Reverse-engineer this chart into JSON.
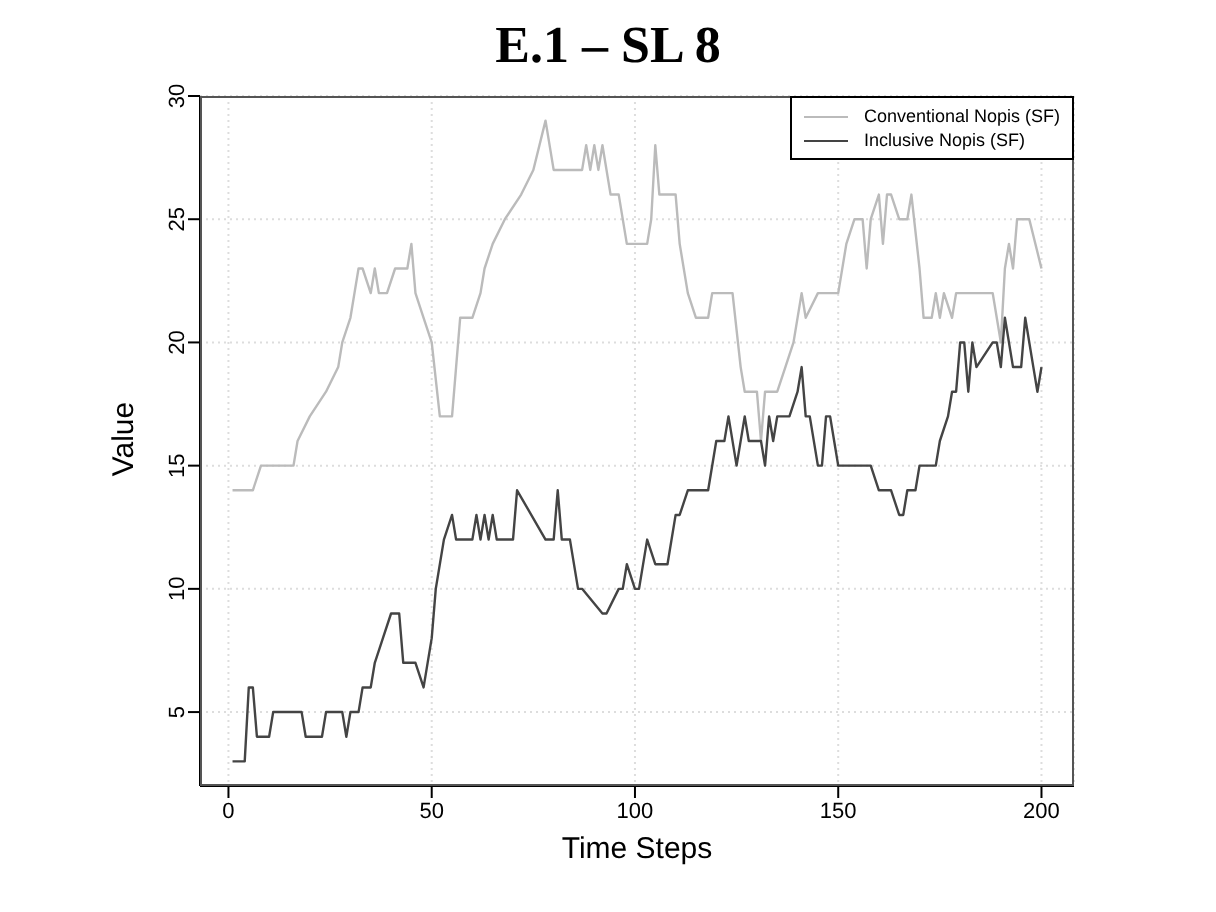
{
  "chart_data": {
    "type": "line",
    "title": "E.1 – SL 8",
    "xlabel": "Time Steps",
    "ylabel": "Value",
    "xlim": [
      -7,
      208
    ],
    "ylim": [
      2,
      30
    ],
    "xticks": [
      0,
      50,
      100,
      150,
      200
    ],
    "yticks": [
      5,
      10,
      15,
      20,
      25,
      30
    ],
    "grid": true,
    "legend": "top right",
    "line_style": "solid",
    "marker": "none",
    "series": [
      {
        "name": "Conventional Nopis (SF)",
        "color": "#bbbbbb",
        "x": [
          1,
          6,
          8,
          16,
          17,
          20,
          24,
          27,
          28,
          30,
          31,
          32,
          33,
          35,
          36,
          37,
          39,
          41,
          44,
          45,
          46,
          48,
          50,
          52,
          55,
          56,
          57,
          60,
          62,
          63,
          65,
          68,
          72,
          75,
          78,
          80,
          87,
          88,
          89,
          90,
          91,
          92,
          94,
          96,
          98,
          103,
          104,
          105,
          106,
          110,
          111,
          113,
          115,
          118,
          119,
          124,
          126,
          127,
          130,
          131,
          132,
          135,
          137,
          139,
          141,
          142,
          145,
          146,
          147,
          150,
          152,
          154,
          156,
          157,
          158,
          160,
          161,
          162,
          163,
          165,
          167,
          168,
          170,
          171,
          173,
          174,
          175,
          176,
          178,
          179,
          181,
          188,
          189,
          190,
          191,
          192,
          193,
          194,
          195,
          197,
          200
        ],
        "values": [
          14,
          14,
          15,
          15,
          16,
          17,
          18,
          19,
          20,
          21,
          22,
          23,
          23,
          22,
          23,
          22,
          22,
          23,
          23,
          24,
          22,
          21,
          20,
          17,
          17,
          19,
          21,
          21,
          22,
          23,
          24,
          25,
          26,
          27,
          29,
          27,
          27,
          28,
          27,
          28,
          27,
          28,
          26,
          26,
          24,
          24,
          25,
          28,
          26,
          26,
          24,
          22,
          21,
          21,
          22,
          22,
          19,
          18,
          18,
          16,
          18,
          18,
          19,
          20,
          22,
          21,
          22,
          22,
          22,
          22,
          24,
          25,
          25,
          23,
          25,
          26,
          24,
          26,
          26,
          25,
          25,
          26,
          23,
          21,
          21,
          22,
          21,
          22,
          21,
          22,
          22,
          22,
          21,
          20,
          23,
          24,
          23,
          25,
          25,
          25,
          23
        ]
      },
      {
        "name": "Inclusive Nopis (SF)",
        "color": "#444444",
        "x": [
          1,
          4,
          5,
          6,
          7,
          10,
          11,
          18,
          19,
          23,
          24,
          28,
          29,
          30,
          32,
          33,
          35,
          36,
          38,
          40,
          42,
          43,
          46,
          48,
          50,
          51,
          53,
          55,
          56,
          60,
          61,
          62,
          63,
          64,
          65,
          66,
          70,
          71,
          78,
          80,
          81,
          82,
          84,
          86,
          87,
          92,
          93,
          96,
          97,
          98,
          100,
          101,
          103,
          105,
          108,
          110,
          111,
          113,
          118,
          120,
          122,
          123,
          125,
          127,
          128,
          131,
          132,
          133,
          134,
          135,
          138,
          140,
          141,
          142,
          143,
          145,
          146,
          147,
          148,
          149,
          150,
          158,
          160,
          163,
          165,
          166,
          167,
          169,
          170,
          174,
          175,
          177,
          178,
          179,
          180,
          181,
          182,
          183,
          184,
          188,
          189,
          190,
          191,
          193,
          195,
          196,
          198,
          199,
          200
        ],
        "values": [
          3,
          3,
          6,
          6,
          4,
          4,
          5,
          5,
          4,
          4,
          5,
          5,
          4,
          5,
          5,
          6,
          6,
          7,
          8,
          9,
          9,
          7,
          7,
          6,
          8,
          10,
          12,
          13,
          12,
          12,
          13,
          12,
          13,
          12,
          13,
          12,
          12,
          14,
          12,
          12,
          14,
          12,
          12,
          10,
          10,
          9,
          9,
          10,
          10,
          11,
          10,
          10,
          12,
          11,
          11,
          13,
          13,
          14,
          14,
          16,
          16,
          17,
          15,
          17,
          16,
          16,
          15,
          17,
          16,
          17,
          17,
          18,
          19,
          17,
          17,
          15,
          15,
          17,
          17,
          16,
          15,
          15,
          14,
          14,
          13,
          13,
          14,
          14,
          15,
          15,
          16,
          17,
          18,
          18,
          20,
          20,
          18,
          20,
          19,
          20,
          20,
          19,
          21,
          19,
          19,
          21,
          19,
          18,
          19
        ]
      }
    ]
  }
}
